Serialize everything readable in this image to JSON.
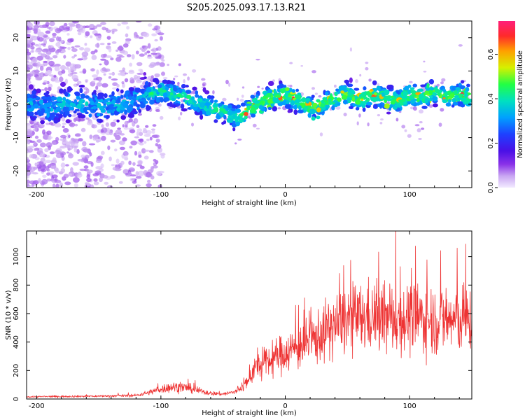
{
  "title": "S205.2025.093.17.13.R21",
  "colors": {
    "snr_line": "#ee3333",
    "frame": "#000000",
    "background": "#ffffff"
  },
  "chart_data": [
    {
      "type": "heatmap",
      "xlabel": "Height of straight line (km)",
      "ylabel": "Frequency (Hz)",
      "xlim": [
        -208,
        150
      ],
      "ylim": [
        -25,
        25
      ],
      "x_ticks": [
        -200,
        -100,
        0,
        100
      ],
      "x_tick_labels": [
        "-200",
        "-100",
        "0",
        "100"
      ],
      "y_ticks": [
        -20,
        -10,
        0,
        10,
        20
      ],
      "y_tick_labels": [
        "-20",
        "-10",
        "0",
        "10",
        "20"
      ],
      "ridge": {
        "x": [
          -208,
          -190,
          -170,
          -150,
          -130,
          -110,
          -100,
          -80,
          -60,
          -50,
          -40,
          -30,
          -20,
          -10,
          0,
          10,
          20,
          30,
          40,
          50,
          60,
          70,
          80,
          90,
          100,
          110,
          120,
          130,
          140,
          150
        ],
        "freq": [
          0,
          -1,
          1,
          -1,
          0,
          3,
          4,
          2,
          -1,
          -2,
          -4,
          -2,
          1,
          2,
          3,
          1,
          -1,
          0,
          2,
          3,
          1,
          3,
          2,
          1,
          3,
          2,
          4,
          2,
          3,
          2
        ]
      },
      "colorbar": {
        "label": "Normalized spectral amplitude",
        "range": [
          0,
          0.75
        ],
        "ticks": [
          0,
          0.2,
          0.4,
          0.6
        ],
        "tick_labels": [
          "0.0",
          "0.2",
          "0.4",
          "0.6"
        ]
      },
      "grid": false
    },
    {
      "type": "line",
      "xlabel": "Height of straight line (km)",
      "ylabel": "SNR (10 * v/v)",
      "xlim": [
        -208,
        150
      ],
      "ylim": [
        0,
        1180
      ],
      "x_ticks": [
        -200,
        -100,
        0,
        100
      ],
      "x_tick_labels": [
        "-200",
        "-100",
        "0",
        "100"
      ],
      "y_ticks": [
        0,
        200,
        400,
        600,
        800,
        1000
      ],
      "y_tick_labels": [
        "0",
        "200",
        "400",
        "600",
        "800",
        "1000"
      ],
      "series": [
        {
          "x": [
            -208,
            -180,
            -150,
            -120,
            -110,
            -100,
            -90,
            -80,
            -70,
            -60,
            -50,
            -40,
            -30,
            -25,
            -20,
            -10,
            0,
            10,
            20,
            30,
            40,
            50,
            60,
            70,
            80,
            90,
            100,
            110,
            120,
            130,
            140,
            150
          ],
          "y": [
            15,
            18,
            20,
            25,
            45,
            70,
            85,
            80,
            60,
            40,
            35,
            50,
            120,
            220,
            230,
            280,
            330,
            360,
            400,
            460,
            520,
            560,
            560,
            580,
            560,
            560,
            570,
            570,
            560,
            550,
            560,
            550
          ]
        }
      ],
      "grid": false
    }
  ]
}
